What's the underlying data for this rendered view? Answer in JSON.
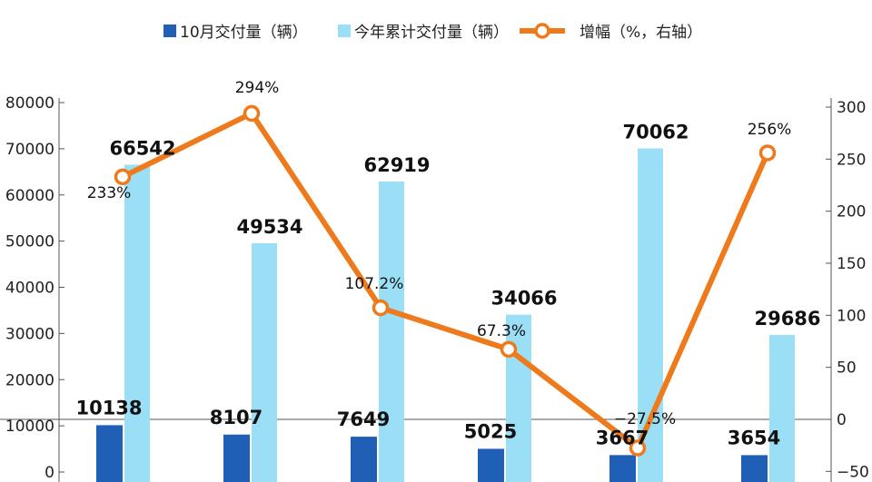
{
  "chart_data": {
    "type": "bar",
    "title": "",
    "xlabel": "",
    "ylabel": "",
    "categories": [
      "",
      "",
      "",
      "",
      "",
      ""
    ],
    "series": [
      {
        "name": "10月交付量（辆）",
        "kind": "bar",
        "axis": "left",
        "color": "#1f5fb5",
        "values": [
          10138,
          8107,
          7649,
          5025,
          3667,
          3654
        ],
        "labels": [
          "10138",
          "8107",
          "7649",
          "5025",
          "3667",
          "3654"
        ]
      },
      {
        "name": "今年累计交付量（辆）",
        "kind": "bar",
        "axis": "left",
        "color": "#9adff5",
        "values": [
          66542,
          49534,
          62919,
          34066,
          70062,
          29686
        ],
        "labels": [
          "66542",
          "49534",
          "62919",
          "34066",
          "70062",
          "29686"
        ]
      },
      {
        "name": "增幅（%，右轴）",
        "kind": "line",
        "axis": "right",
        "color": "#ee7a1c",
        "values": [
          233,
          294,
          107.2,
          67.3,
          -27.5,
          256
        ],
        "labels": [
          "233%",
          "294%",
          "107.2%",
          "67.3%",
          "−27.5%",
          "256%"
        ]
      }
    ],
    "ylim_left": [
      0,
      80000
    ],
    "yticks_left": [
      "0",
      "10000",
      "20000",
      "30000",
      "40000",
      "50000",
      "60000",
      "70000",
      "80000"
    ],
    "ylim_right": [
      -50,
      300
    ],
    "yticks_right": [
      "−50",
      "0",
      "50",
      "100",
      "150",
      "200",
      "250",
      "300"
    ],
    "legend_position": "top-center",
    "grid": false
  }
}
